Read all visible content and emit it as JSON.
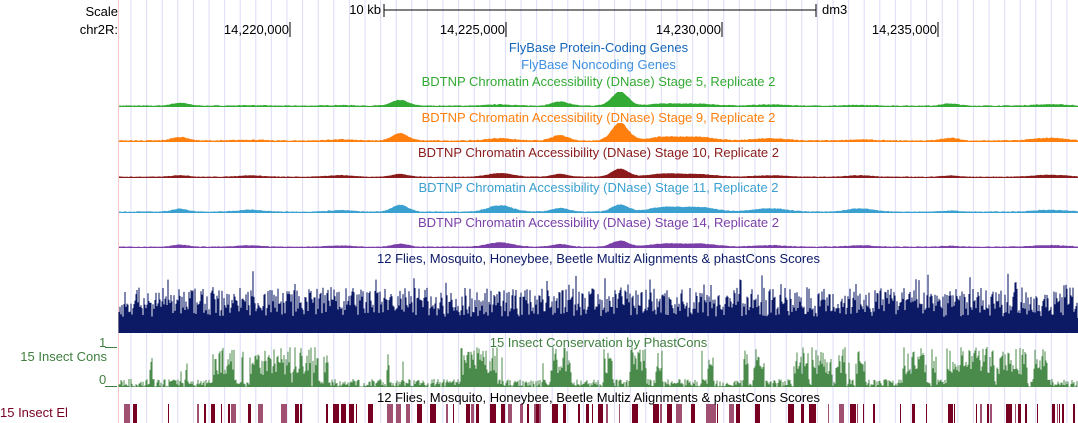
{
  "ruler": {
    "scale_label": "Scale",
    "chrom_label": "chr2R:",
    "scale_bar": "10 kb",
    "assembly": "dm3",
    "ticks": [
      "14,220,000",
      "14,225,000",
      "14,230,000",
      "14,235,000"
    ]
  },
  "tracks": [
    {
      "title": "FlyBase Protein-Coding Genes",
      "color": "#1566b9"
    },
    {
      "title": "FlyBase Noncoding Genes",
      "color": "#3d8fe0"
    },
    {
      "title": "BDTNP Chromatin Accessibility (DNase) Stage 5, Replicate 2",
      "color": "#33aa33"
    },
    {
      "title": "BDTNP Chromatin Accessibility (DNase) Stage 9, Replicate 2",
      "color": "#ff7f0e"
    },
    {
      "title": "BDTNP Chromatin Accessibility (DNase) Stage 10, Replicate 2",
      "color": "#8b1a1a"
    },
    {
      "title": "BDTNP Chromatin Accessibility (DNase) Stage 11, Replicate 2",
      "color": "#3aa0cf"
    },
    {
      "title": "BDTNP Chromatin Accessibility (DNase) Stage 14, Replicate 2",
      "color": "#7a3fa8"
    },
    {
      "title": "12 Flies, Mosquito, Honeybee, Beetle Multiz Alignments & phastCons Scores",
      "color": "#0c1a66"
    },
    {
      "title": "15 Insect Conservation by PhastCons",
      "color": "#3f7f3f",
      "side_label": "15 Insect Cons",
      "ymax": "1",
      "ymin": "0"
    },
    {
      "title": "12 Flies, Mosquito, Honeybee, Beetle Multiz Alignments & phastCons Scores",
      "color": "#770022",
      "side_label": "15 Insect El"
    }
  ]
}
